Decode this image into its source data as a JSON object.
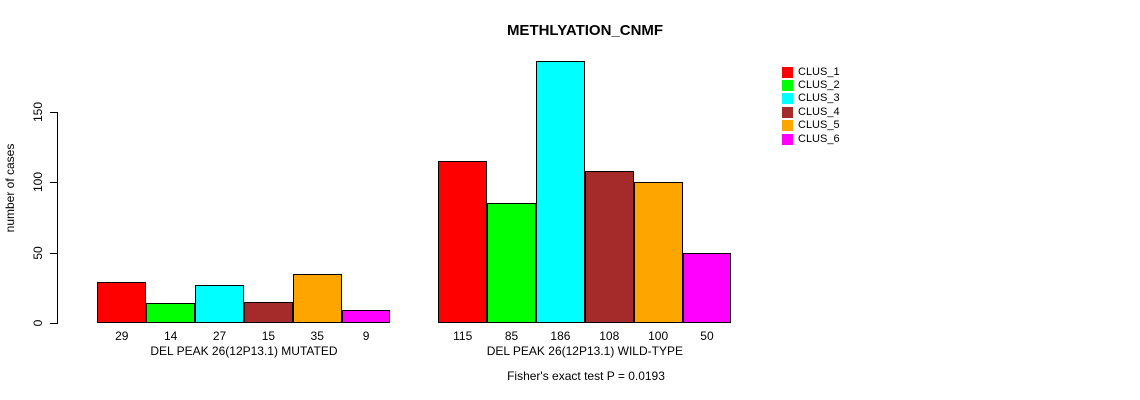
{
  "chart_data": {
    "type": "bar",
    "title": "METHLYATION_CNMF",
    "ylabel": "number of cases",
    "xlabel": "",
    "yticks": [
      0,
      50,
      100,
      150
    ],
    "ylim": [
      0,
      190
    ],
    "grid": false,
    "legend_position": "right",
    "series": [
      {
        "name": "CLUS_1",
        "color": "#FF0000"
      },
      {
        "name": "CLUS_2",
        "color": "#00FF00"
      },
      {
        "name": "CLUS_3",
        "color": "#00FFFF"
      },
      {
        "name": "CLUS_4",
        "color": "#A52A2A"
      },
      {
        "name": "CLUS_5",
        "color": "#FFA500"
      },
      {
        "name": "CLUS_6",
        "color": "#FF00FF"
      }
    ],
    "groups": [
      {
        "label": "DEL PEAK 26(12P13.1) MUTATED",
        "values": [
          29,
          14,
          27,
          15,
          35,
          9
        ]
      },
      {
        "label": "DEL PEAK 26(12P13.1) WILD-TYPE",
        "values": [
          115,
          85,
          186,
          108,
          100,
          50
        ]
      }
    ],
    "footnote": "Fisher's exact test P = 0.0193",
    "colors": {
      "background": "#FFFFFF",
      "axis": "#000000",
      "text": "#000000"
    }
  }
}
